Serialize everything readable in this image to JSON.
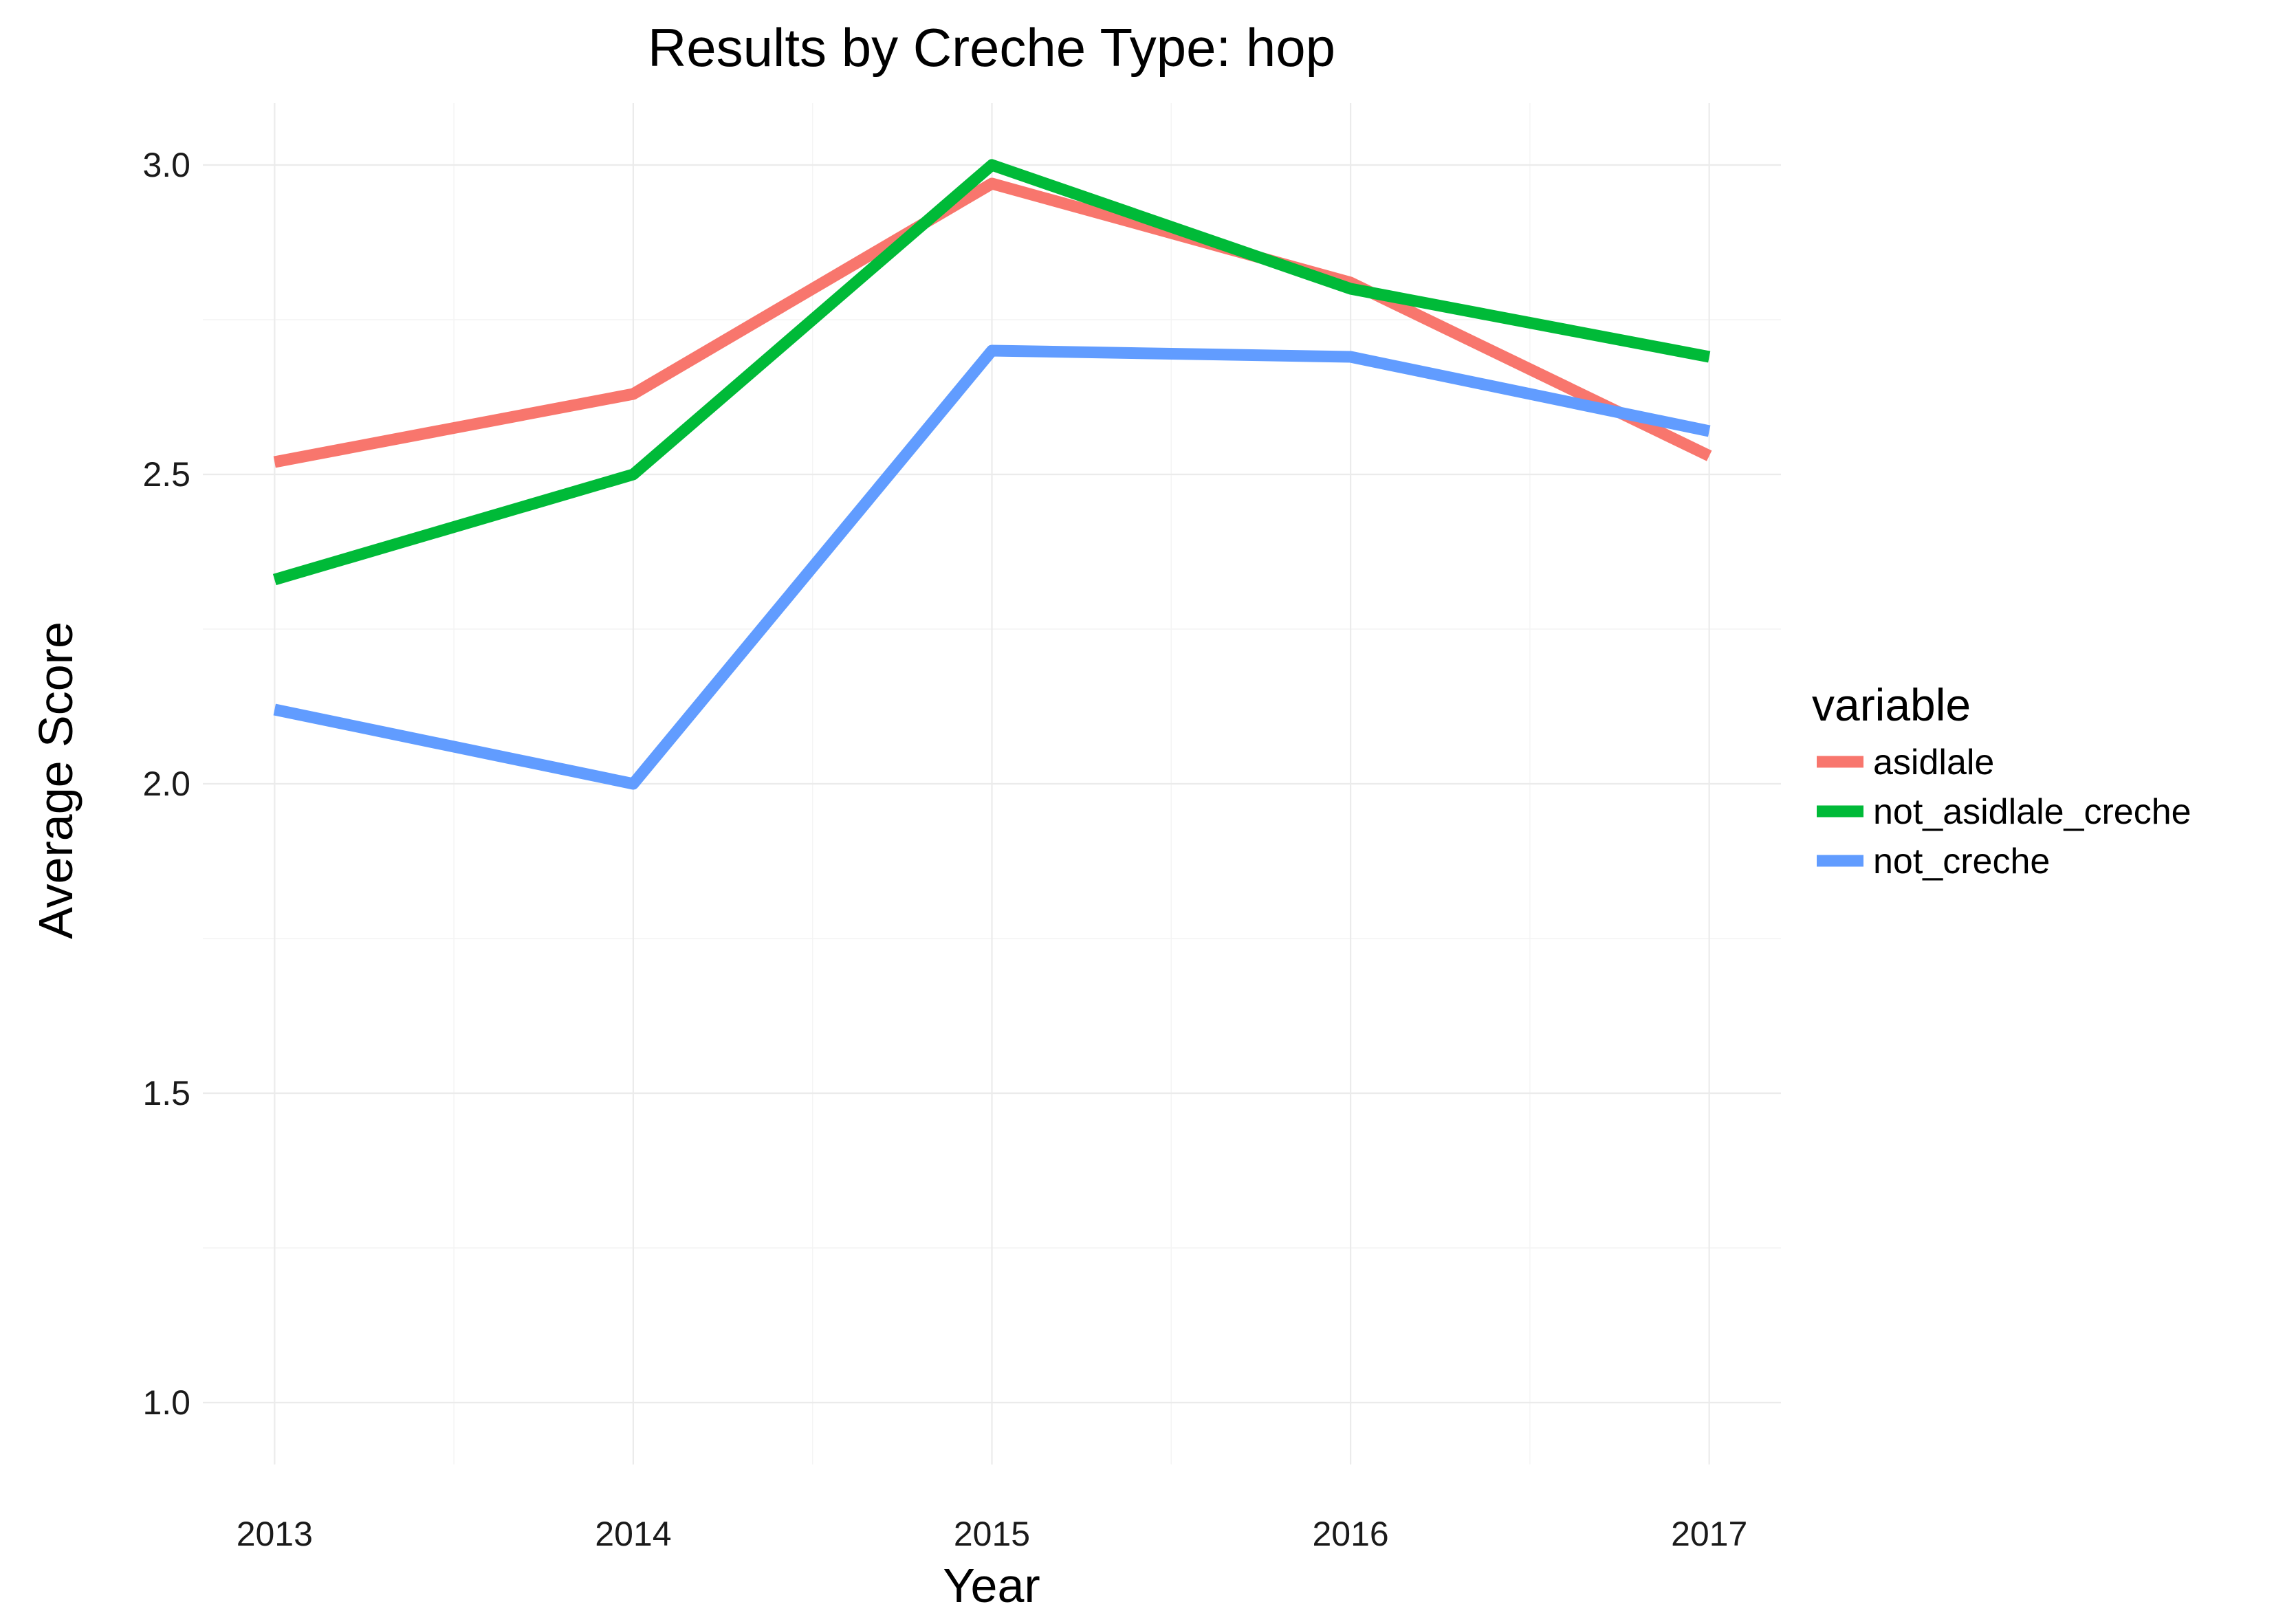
{
  "chart_data": {
    "type": "line",
    "title": "Results by Creche Type: hop",
    "xlabel": "Year",
    "ylabel": "Average Score",
    "x": [
      2013,
      2014,
      2015,
      2016,
      2017
    ],
    "x_tick_labels": [
      "2013",
      "2014",
      "2015",
      "2016",
      "2017"
    ],
    "y_ticks": [
      1.0,
      1.5,
      2.0,
      2.5,
      3.0
    ],
    "y_tick_labels": [
      "1.0",
      "1.5",
      "2.0",
      "2.5",
      "3.0"
    ],
    "xlim": [
      2012.8,
      2017.2
    ],
    "ylim": [
      0.9,
      3.1
    ],
    "grid": true,
    "legend": {
      "title": "variable",
      "position": "right"
    },
    "series": [
      {
        "name": "asidlale",
        "color": "#f8766d",
        "values": [
          2.52,
          2.63,
          2.97,
          2.81,
          2.53
        ]
      },
      {
        "name": "not_asidlale_creche",
        "color": "#00ba38",
        "values": [
          2.33,
          2.5,
          3.0,
          2.8,
          2.69
        ]
      },
      {
        "name": "not_creche",
        "color": "#619cff",
        "values": [
          2.12,
          2.0,
          2.7,
          2.69,
          2.57
        ]
      }
    ]
  }
}
